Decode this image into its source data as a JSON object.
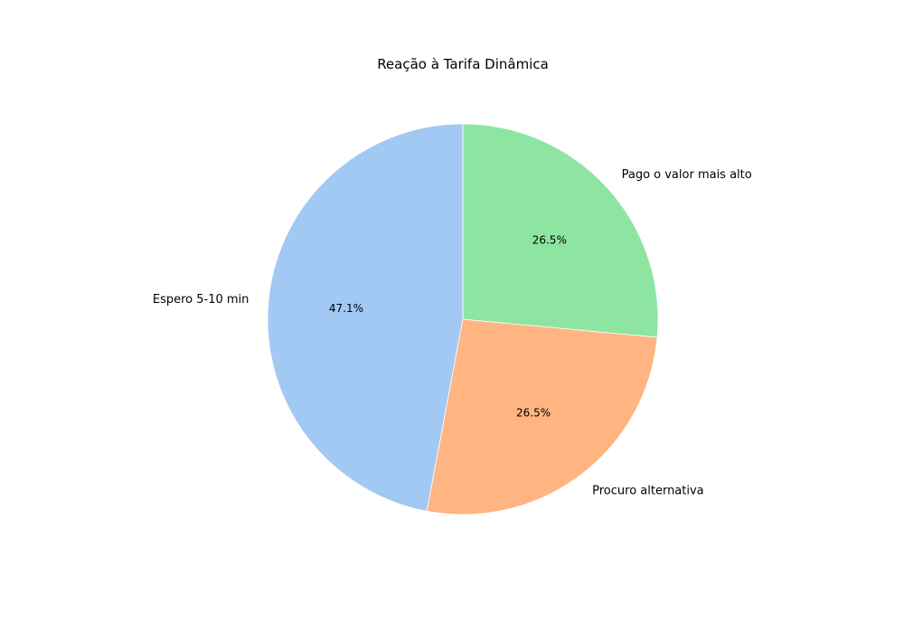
{
  "chart_data": {
    "type": "pie",
    "title": "Reação à Tarifa Dinâmica",
    "start_angle_deg": 90,
    "direction": "counterclockwise",
    "slices": [
      {
        "label": "Espero 5-10 min",
        "value": 47.1,
        "pct_label": "47.1%",
        "color": "#a1c9f4"
      },
      {
        "label": "Procuro alternativa",
        "value": 26.5,
        "pct_label": "26.5%",
        "color": "#ffb482"
      },
      {
        "label": "Pago o valor mais alto",
        "value": 26.5,
        "pct_label": "26.5%",
        "color": "#8de5a1"
      }
    ]
  }
}
